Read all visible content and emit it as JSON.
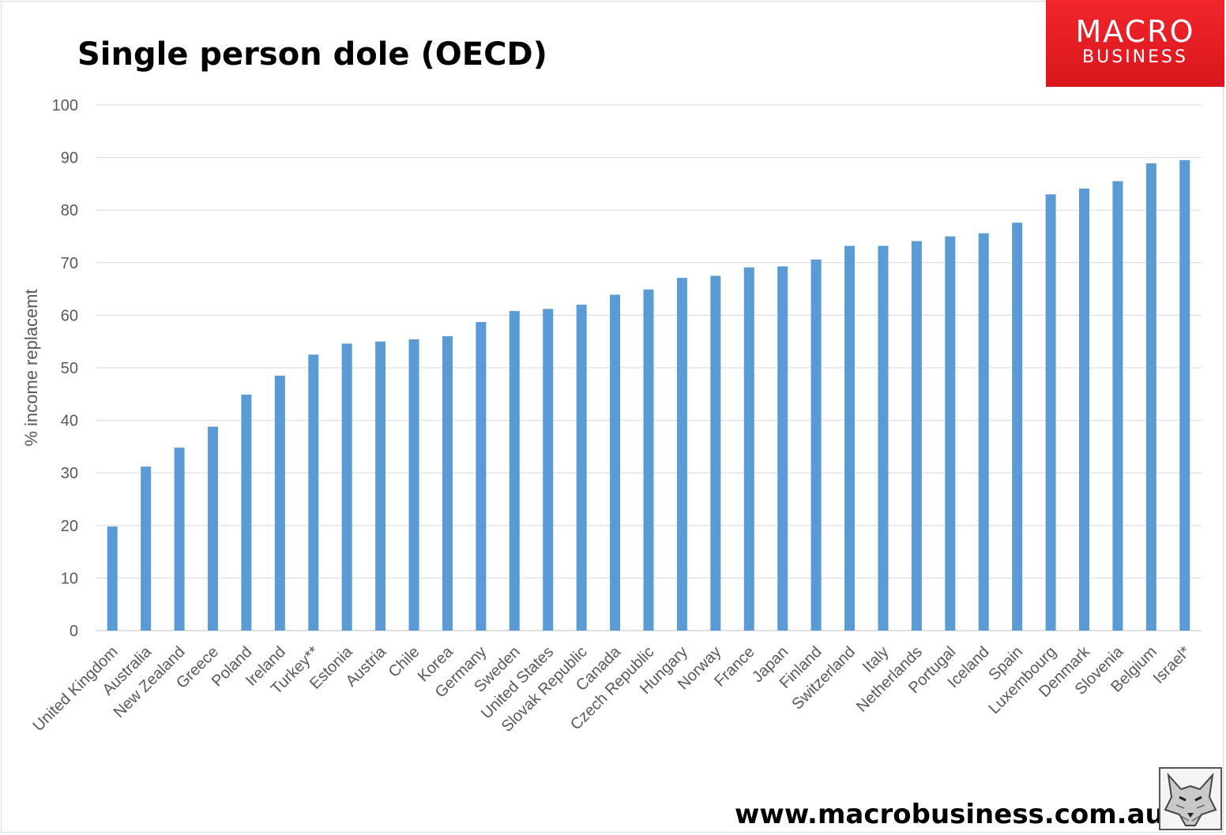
{
  "chart_data": {
    "type": "bar",
    "title": "Single person dole (OECD)",
    "ylabel": "% income replacemt",
    "xlabel": "",
    "ylim": [
      0,
      100
    ],
    "yticks": [
      0,
      10,
      20,
      30,
      40,
      50,
      60,
      70,
      80,
      90,
      100
    ],
    "grid": true,
    "bar_color": "#5b9bd5",
    "categories": [
      "United Kingdom",
      "Australia",
      "New Zealand",
      "Greece",
      "Poland",
      "Ireland",
      "Turkey**",
      "Estonia",
      "Austria",
      "Chile",
      "Korea",
      "Germany",
      "Sweden",
      "United States",
      "Slovak Republic",
      "Canada",
      "Czech Republic",
      "Hungary",
      "Norway",
      "France",
      "Japan",
      "Finland",
      "Switzerland",
      "Italy",
      "Netherlands",
      "Portugal",
      "Iceland",
      "Spain",
      "Luxembourg",
      "Denmark",
      "Slovenia",
      "Belgium",
      "Israel*"
    ],
    "values": [
      19.8,
      31.2,
      34.8,
      38.8,
      44.9,
      48.5,
      52.5,
      54.6,
      55.0,
      55.4,
      56.0,
      58.7,
      60.8,
      61.2,
      62.0,
      63.9,
      64.9,
      67.1,
      67.5,
      69.1,
      69.3,
      70.6,
      73.2,
      73.2,
      74.1,
      75.0,
      75.6,
      77.6,
      83.0,
      84.1,
      85.5,
      88.9,
      89.5
    ]
  },
  "branding": {
    "logo_line1": "MACRO",
    "logo_line2": "BUSINESS",
    "logo_color": "#e8202a",
    "website": "www.macrobusiness.com.au",
    "mascot_icon": "wolf-head-icon"
  }
}
